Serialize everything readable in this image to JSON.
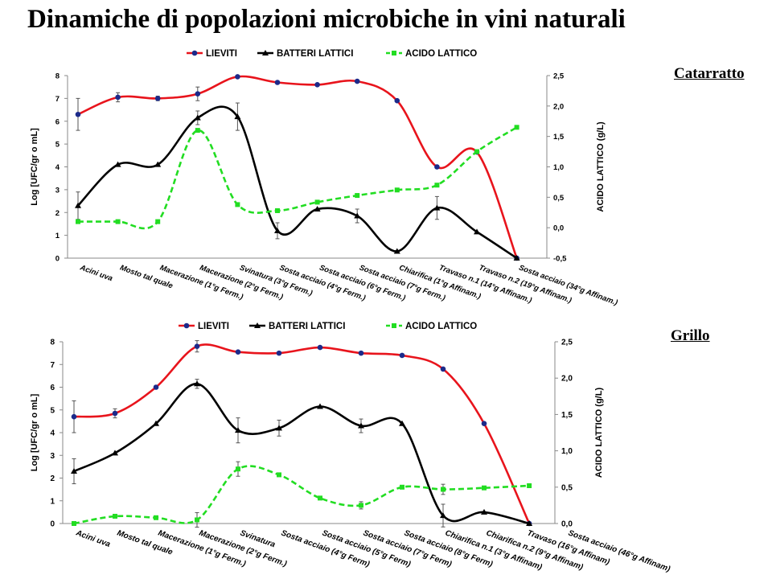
{
  "slide_title": "Dinamiche di popolazioni microbiche in vini naturali",
  "colors": {
    "lieviti": "#e8141c",
    "batteri": "#000000",
    "acido": "#22dd22",
    "marker_lieviti": "#1c2a8a"
  },
  "chart_data": [
    {
      "type": "line",
      "variety": "Catarratto",
      "categories": [
        "Acini uva",
        "Mosto tal quale",
        "Macerazione (1°g Ferm.)",
        "Macerazione (2°g Ferm.)",
        "Svinatura (3°g Ferm.)",
        "Sosta acciaio (4°g Ferm.)",
        "Sosta acciaio (6°g Ferm.)",
        "Sosta acciaio (7°g Ferm.)",
        "Chiarifica (1°g Affinam.)",
        "Travaso n.1 (14°g Affinam.)",
        "Travaso n.2 (19°g  Affinam.)",
        "Sosta acciaio (34°g Affinam.)"
      ],
      "ylabel": "Log  [UFC/gr o mL]",
      "y2label": "ACIDO LATTICO (g/L)",
      "ylim": [
        0,
        8
      ],
      "y2lim": [
        -0.5,
        2.5
      ],
      "yticks": [
        "0",
        "1",
        "2",
        "3",
        "4",
        "5",
        "6",
        "7",
        "8"
      ],
      "y2ticks": [
        "-0,5",
        "0,0",
        "0,5",
        "1,0",
        "1,5",
        "2,0",
        "2,5"
      ],
      "legend": [
        "LIEVITI",
        "BATTERI LATTICI",
        "ACIDO LATTICO"
      ],
      "legend_position": "top",
      "series": [
        {
          "name": "LIEVITI",
          "axis": "left",
          "values": [
            6.3,
            7.05,
            7.0,
            7.2,
            7.95,
            7.7,
            7.6,
            7.75,
            6.9,
            4.0,
            4.65,
            0.0
          ],
          "err": [
            0.7,
            0.2,
            0.1,
            0.3,
            0,
            0,
            0,
            0,
            0,
            0,
            0,
            0
          ]
        },
        {
          "name": "BATTERI LATTICI",
          "axis": "left",
          "values": [
            2.3,
            4.1,
            4.1,
            6.15,
            6.2,
            1.2,
            2.15,
            1.85,
            0.3,
            2.2,
            1.15,
            0.0
          ],
          "err": [
            0.6,
            0,
            0,
            0.3,
            0.6,
            0.35,
            0,
            0.3,
            0,
            0.5,
            0,
            0
          ]
        },
        {
          "name": "ACIDO LATTICO",
          "axis": "right",
          "values": [
            0.1,
            0.1,
            0.1,
            1.6,
            0.38,
            0.28,
            0.42,
            0.53,
            0.62,
            0.7,
            1.25,
            1.65
          ],
          "err": [
            0,
            0,
            0,
            0,
            0,
            0,
            0,
            0,
            0,
            0,
            0,
            0
          ]
        }
      ]
    },
    {
      "type": "line",
      "variety": "Grillo",
      "categories": [
        "Acini uva",
        "Mosto tal quale",
        "Macerazione (1°g Ferm.)",
        "Macerazione (2°g Ferm.)",
        "Svinatura",
        "Sosta acciaio (4°g Ferm)",
        "Sosta acciaio (5°g Ferm)",
        "Sosta acciaio (7°g Ferm)",
        "Sosta acciaio (8°g Ferm)",
        "Chiarifica n.1 (3°g Affinam)",
        "Chiarifica n.2 (9°g Affinam)",
        "Travaso (16°g Affinam)",
        "Sosta acciaio (46°g Affinam)"
      ],
      "ylabel": "Log  [UFC/gr o mL]",
      "y2label": "ACIDO LATTICO (g/L)",
      "ylim": [
        0,
        8
      ],
      "y2lim": [
        0,
        2.5
      ],
      "yticks": [
        "0",
        "1",
        "2",
        "3",
        "4",
        "5",
        "6",
        "7",
        "8"
      ],
      "y2ticks": [
        "0,0",
        "0,5",
        "1,0",
        "1,5",
        "2,0",
        "2,5"
      ],
      "legend": [
        "LIEVITI",
        "BATTERI LATTICI",
        "ACIDO LATTICO"
      ],
      "legend_position": "top",
      "series": [
        {
          "name": "LIEVITI",
          "axis": "left",
          "values": [
            4.7,
            4.85,
            6.0,
            7.8,
            7.55,
            7.5,
            7.75,
            7.5,
            7.4,
            6.8,
            4.4,
            0.0
          ],
          "x": [
            0,
            1,
            2,
            3,
            4,
            5,
            6,
            7,
            8,
            9,
            10,
            11.1
          ],
          "err": [
            0.7,
            0.2,
            0,
            0.25,
            0,
            0,
            0,
            0,
            0,
            0,
            0,
            0
          ]
        },
        {
          "name": "BATTERI LATTICI",
          "axis": "left",
          "values": [
            2.3,
            3.1,
            4.4,
            6.15,
            4.1,
            4.2,
            5.15,
            4.3,
            4.4,
            0.35,
            0.5,
            0.0
          ],
          "x": [
            0,
            1,
            2,
            3,
            4,
            5,
            6,
            7,
            8,
            9,
            10,
            11.1
          ],
          "err": [
            0.55,
            0,
            0,
            0.2,
            0.55,
            0.35,
            0,
            0.3,
            0,
            0.5,
            0,
            0
          ]
        },
        {
          "name": "ACIDO LATTICO",
          "axis": "right",
          "values": [
            0.0,
            0.1,
            0.08,
            0.05,
            0.75,
            0.67,
            0.35,
            0.25,
            0.5,
            0.47,
            0.49,
            0.52
          ],
          "x": [
            0,
            1,
            2,
            3,
            4,
            5,
            6,
            7,
            8,
            9,
            10,
            11.1
          ],
          "err": [
            0,
            0,
            0,
            0.1,
            0.1,
            0,
            0,
            0.05,
            0,
            0.07,
            0,
            0
          ]
        }
      ]
    }
  ]
}
